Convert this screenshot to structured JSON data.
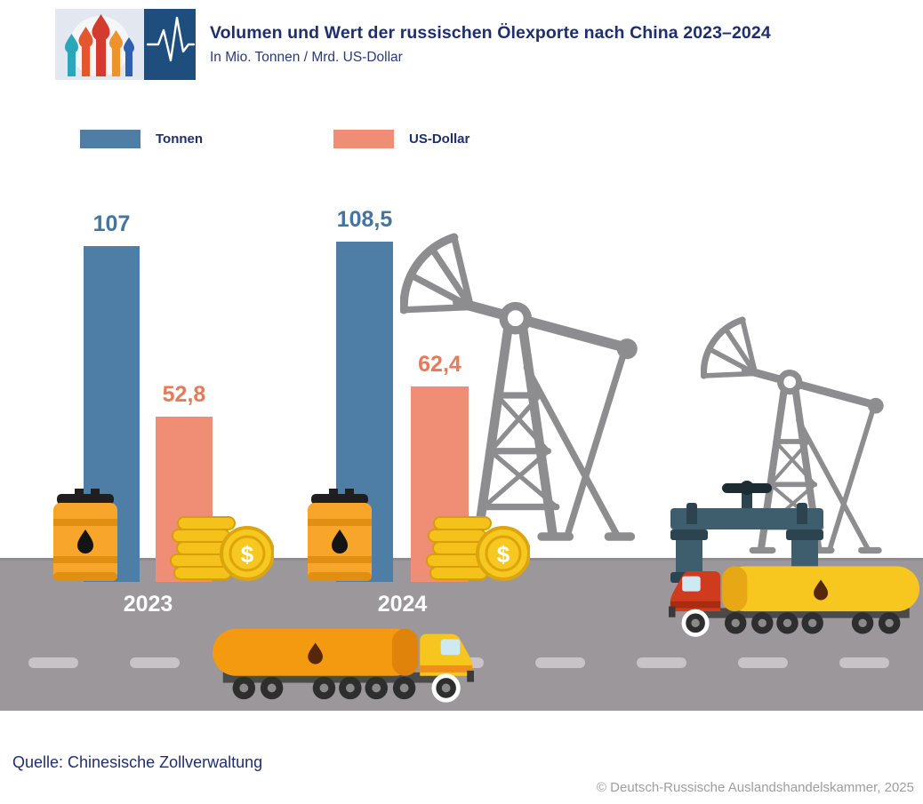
{
  "header": {
    "title": "Volumen und Wert der russischen Ölexporte nach China 2023–2024",
    "subtitle": "In Mio. Tonnen / Mrd. US-Dollar"
  },
  "legend": [
    {
      "label": "Tonnen",
      "color": "#4e7da6"
    },
    {
      "label": "US-Dollar",
      "color": "#ef8d75"
    }
  ],
  "chart_data": {
    "type": "bar",
    "categories": [
      "2023",
      "2024"
    ],
    "series": [
      {
        "name": "Tonnen",
        "unit": "Mio. Tonnen",
        "values": [
          107,
          108.5
        ],
        "labels": [
          "107",
          "108,5"
        ],
        "color": "#4e7da6",
        "label_color": "#44749f"
      },
      {
        "name": "US-Dollar",
        "unit": "Mrd. US-Dollar",
        "values": [
          52.8,
          62.4
        ],
        "labels": [
          "52,8",
          "62,4"
        ],
        "color": "#ef8d75",
        "label_color": "#e8795a"
      }
    ],
    "title": "Volumen und Wert der russischen Ölexporte nach China 2023–2024",
    "xlabel": "",
    "ylabel": "In Mio. Tonnen / Mrd. US-Dollar",
    "ylim": [
      0,
      120
    ],
    "grid": false,
    "legend_position": "top",
    "value_labels": "above"
  },
  "icons": {
    "dollar_sign": "$"
  },
  "footer": {
    "source": "Quelle: Chinesische Zollverwaltung",
    "copyright": "© Deutsch-Russische Auslandshandelskammer, 2025"
  },
  "colors": {
    "title_text": "#1f2e6e",
    "road": "#9c979b",
    "lane_dash": "#c7c3c6",
    "pump_gray": "#8d8d90",
    "barrel_orange": "#f7a62b",
    "coin_gold": "#f7c81f",
    "copyright_text": "#9e9e9e"
  }
}
